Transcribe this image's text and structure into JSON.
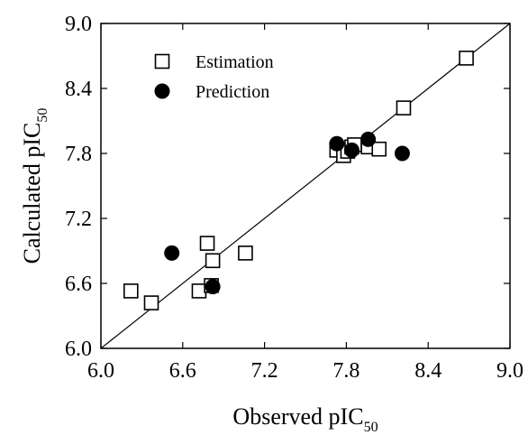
{
  "chart_data": {
    "type": "scatter",
    "xlabel": {
      "base": "Observed pIC",
      "sub": "50"
    },
    "ylabel": {
      "base": "Calculated pIC",
      "sub": "50"
    },
    "xlim": [
      6.0,
      9.0
    ],
    "ylim": [
      6.0,
      9.0
    ],
    "x_ticks": [
      "6.0",
      "6.6",
      "7.2",
      "7.8",
      "8.4",
      "9.0"
    ],
    "y_ticks": [
      "6.0",
      "6.6",
      "7.2",
      "7.8",
      "8.4",
      "9.0"
    ],
    "grid": false,
    "legend_position": "top-left",
    "reference_line": {
      "from": [
        6.0,
        6.0
      ],
      "to": [
        9.0,
        9.0
      ]
    },
    "series": [
      {
        "name": "Estimation",
        "marker": "open-square",
        "color": "#000000",
        "points": [
          [
            6.22,
            6.53
          ],
          [
            6.37,
            6.42
          ],
          [
            6.72,
            6.53
          ],
          [
            6.78,
            6.97
          ],
          [
            6.81,
            6.58
          ],
          [
            6.82,
            6.81
          ],
          [
            7.06,
            6.88
          ],
          [
            7.73,
            7.83
          ],
          [
            7.78,
            7.78
          ],
          [
            7.81,
            7.82
          ],
          [
            7.84,
            7.86
          ],
          [
            7.86,
            7.88
          ],
          [
            7.96,
            7.86
          ],
          [
            8.04,
            7.84
          ],
          [
            8.22,
            8.22
          ],
          [
            8.68,
            8.68
          ]
        ]
      },
      {
        "name": "Prediction",
        "marker": "filled-circle",
        "color": "#000000",
        "points": [
          [
            6.52,
            6.88
          ],
          [
            6.82,
            6.57
          ],
          [
            7.73,
            7.89
          ],
          [
            7.84,
            7.83
          ],
          [
            7.96,
            7.93
          ],
          [
            8.21,
            7.8
          ]
        ]
      }
    ]
  }
}
